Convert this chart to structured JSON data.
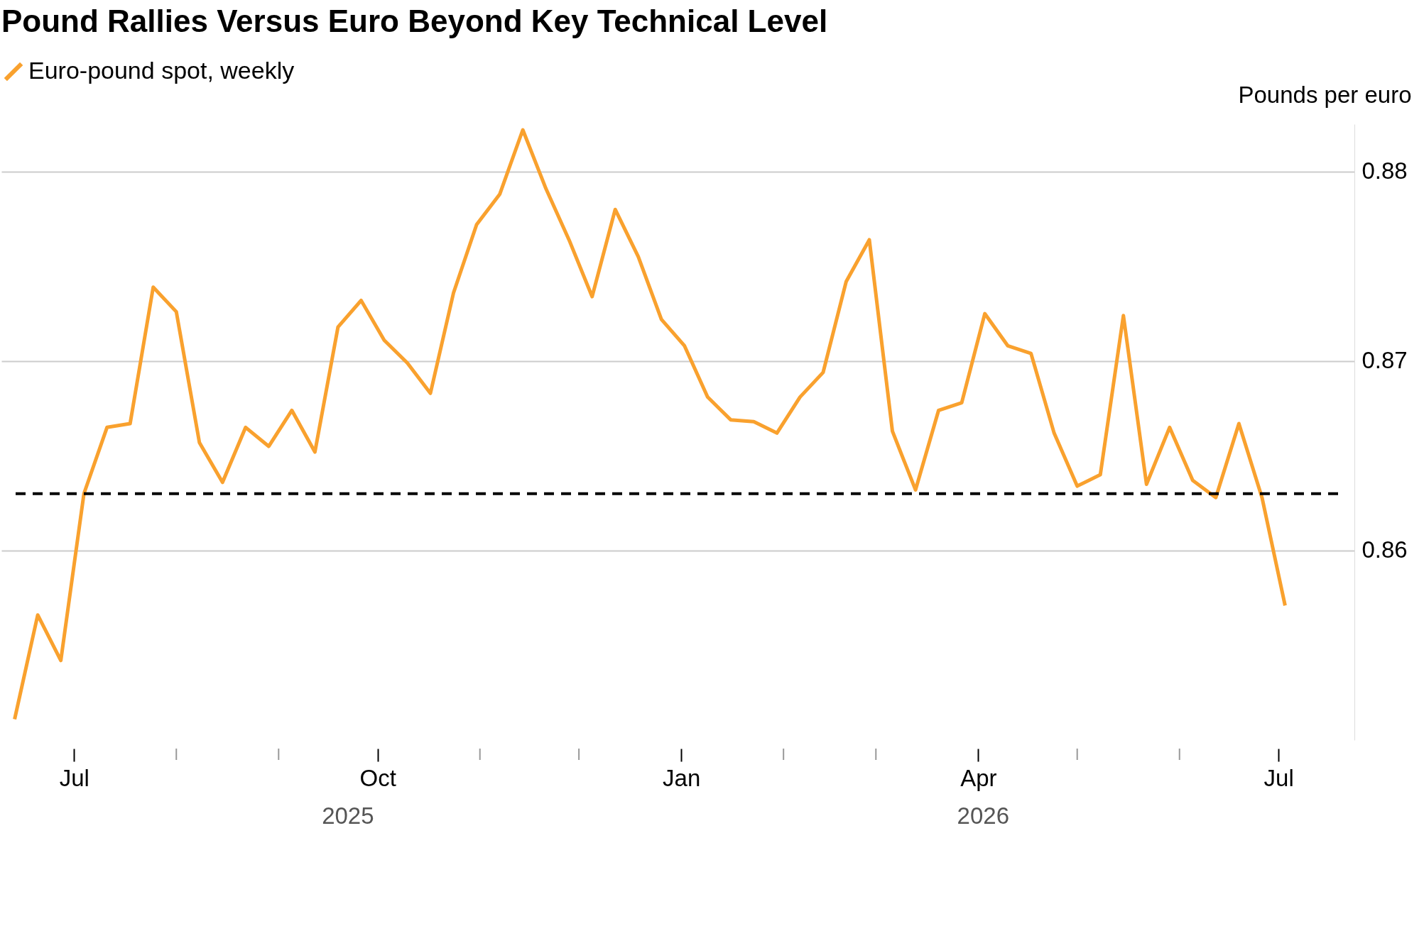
{
  "chart_data": {
    "type": "line",
    "title": "Pound Rallies Versus Euro Beyond Key Technical Level",
    "ylabel": "Pounds per euro",
    "x": [
      "2025-06-13",
      "2025-06-20",
      "2025-06-27",
      "2025-07-04",
      "2025-07-11",
      "2025-07-18",
      "2025-07-25",
      "2025-08-01",
      "2025-08-08",
      "2025-08-15",
      "2025-08-22",
      "2025-08-29",
      "2025-09-05",
      "2025-09-12",
      "2025-09-19",
      "2025-09-26",
      "2025-10-03",
      "2025-10-10",
      "2025-10-17",
      "2025-10-24",
      "2025-10-31",
      "2025-11-07",
      "2025-11-14",
      "2025-11-21",
      "2025-11-28",
      "2025-12-05",
      "2025-12-12",
      "2025-12-19",
      "2025-12-26",
      "2026-01-02",
      "2026-01-09",
      "2026-01-16",
      "2026-01-23",
      "2026-01-30",
      "2026-02-06",
      "2026-02-13",
      "2026-02-20",
      "2026-02-27",
      "2026-03-06",
      "2026-03-13",
      "2026-03-20",
      "2026-03-27",
      "2026-04-03",
      "2026-04-10",
      "2026-04-17",
      "2026-04-24",
      "2026-05-01",
      "2026-05-08",
      "2026-05-15",
      "2026-05-22",
      "2026-05-29",
      "2026-06-05",
      "2026-06-12",
      "2026-06-19",
      "2026-06-26",
      "2026-07-03"
    ],
    "series": [
      {
        "name": "Euro-pound spot, weekly",
        "color": "#f9a12e",
        "values": [
          0.8511,
          0.8566,
          0.8542,
          0.863,
          0.8665,
          0.8667,
          0.8739,
          0.8726,
          0.8657,
          0.8636,
          0.8665,
          0.8655,
          0.8674,
          0.8652,
          0.8718,
          0.8732,
          0.8711,
          0.8699,
          0.8683,
          0.8736,
          0.8772,
          0.8788,
          0.8822,
          0.8791,
          0.8764,
          0.8734,
          0.878,
          0.8755,
          0.8722,
          0.8708,
          0.8681,
          0.8669,
          0.8668,
          0.8662,
          0.8681,
          0.8694,
          0.8742,
          0.8764,
          0.8663,
          0.8632,
          0.8674,
          0.8678,
          0.8725,
          0.8708,
          0.8704,
          0.8662,
          0.8634,
          0.864,
          0.8724,
          0.8635,
          0.8665,
          0.8637,
          0.8628,
          0.8667,
          0.8628,
          0.8571
        ]
      }
    ],
    "xlim": [
      "2025-06-09",
      "2026-07-24"
    ],
    "xticks": [
      {
        "value": "2025-07-01",
        "label": "Jul"
      },
      {
        "value": "2025-08-01",
        "label": null
      },
      {
        "value": "2025-09-01",
        "label": null
      },
      {
        "value": "2025-10-01",
        "label": "Oct"
      },
      {
        "value": "2025-11-01",
        "label": null
      },
      {
        "value": "2025-12-01",
        "label": null
      },
      {
        "value": "2026-01-01",
        "label": "Jan"
      },
      {
        "value": "2026-02-01",
        "label": null
      },
      {
        "value": "2026-03-01",
        "label": null
      },
      {
        "value": "2026-04-01",
        "label": "Apr"
      },
      {
        "value": "2026-05-01",
        "label": null
      },
      {
        "value": "2026-06-01",
        "label": null
      },
      {
        "value": "2026-07-01",
        "label": "Jul"
      }
    ],
    "ylim": [
      0.85,
      0.8825
    ],
    "yticks": [
      0.86,
      0.87,
      0.88
    ],
    "grid": "y",
    "legend": "top left",
    "ref_lines": [
      {
        "axis": "y",
        "value": 0.863,
        "color": "#000000",
        "line_style": "dashed"
      }
    ],
    "annotations": [
      "2025",
      "2026"
    ]
  }
}
